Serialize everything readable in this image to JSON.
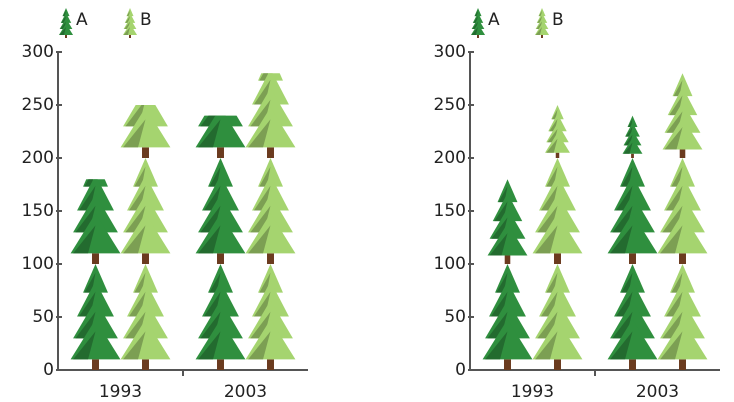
{
  "chart_data": [
    {
      "type": "pictograph",
      "mode": "crop",
      "categories": [
        "1993",
        "2003"
      ],
      "series": [
        {
          "name": "A",
          "color": "#2f8f3e",
          "values": [
            180,
            240
          ]
        },
        {
          "name": "B",
          "color": "#a5d46f",
          "values": [
            250,
            280
          ]
        }
      ],
      "ylim": [
        0,
        300
      ],
      "yticks": [
        0,
        50,
        100,
        150,
        200,
        250,
        300
      ]
    },
    {
      "type": "pictograph",
      "mode": "scale",
      "categories": [
        "1993",
        "2003"
      ],
      "series": [
        {
          "name": "A",
          "color": "#2f8f3e",
          "values": [
            180,
            240
          ]
        },
        {
          "name": "B",
          "color": "#a5d46f",
          "values": [
            250,
            280
          ]
        }
      ],
      "ylim": [
        0,
        300
      ],
      "yticks": [
        0,
        50,
        100,
        150,
        200,
        250,
        300
      ]
    }
  ]
}
